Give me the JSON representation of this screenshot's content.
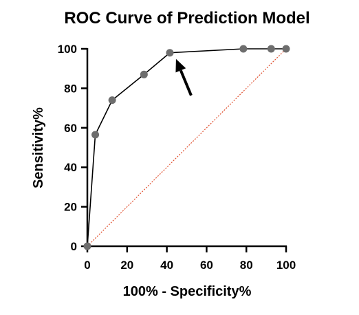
{
  "chart_data": {
    "type": "line",
    "title": "ROC Curve of Prediction Model",
    "xlabel": "100% - Specificity%",
    "ylabel": "Sensitivity%",
    "xlim": [
      0,
      100
    ],
    "ylim": [
      0,
      100
    ],
    "x_ticks": [
      "0",
      "20",
      "40",
      "60",
      "80",
      "100"
    ],
    "y_ticks": [
      "0",
      "20",
      "40",
      "60",
      "80",
      "100"
    ],
    "grid": false,
    "legend": "none",
    "series": [
      {
        "points": [
          {
            "x": 0,
            "y": 0
          },
          {
            "x": 4,
            "y": 56.5
          },
          {
            "x": 12.5,
            "y": 74
          },
          {
            "x": 28.5,
            "y": 87
          },
          {
            "x": 41.5,
            "y": 98
          },
          {
            "x": 78.5,
            "y": 100
          },
          {
            "x": 92.5,
            "y": 100
          },
          {
            "x": 100,
            "y": 100
          }
        ],
        "color": "#000000",
        "marker_color": "#6e6e6e"
      }
    ],
    "reference_line": {
      "points": [
        {
          "x": 0,
          "y": 0
        },
        {
          "x": 100,
          "y": 100
        }
      ],
      "color": "#e0502f",
      "style": "dotted"
    },
    "annotations": [
      {
        "type": "arrow",
        "points_to": {
          "x": 41.5,
          "y": 98
        }
      }
    ]
  }
}
